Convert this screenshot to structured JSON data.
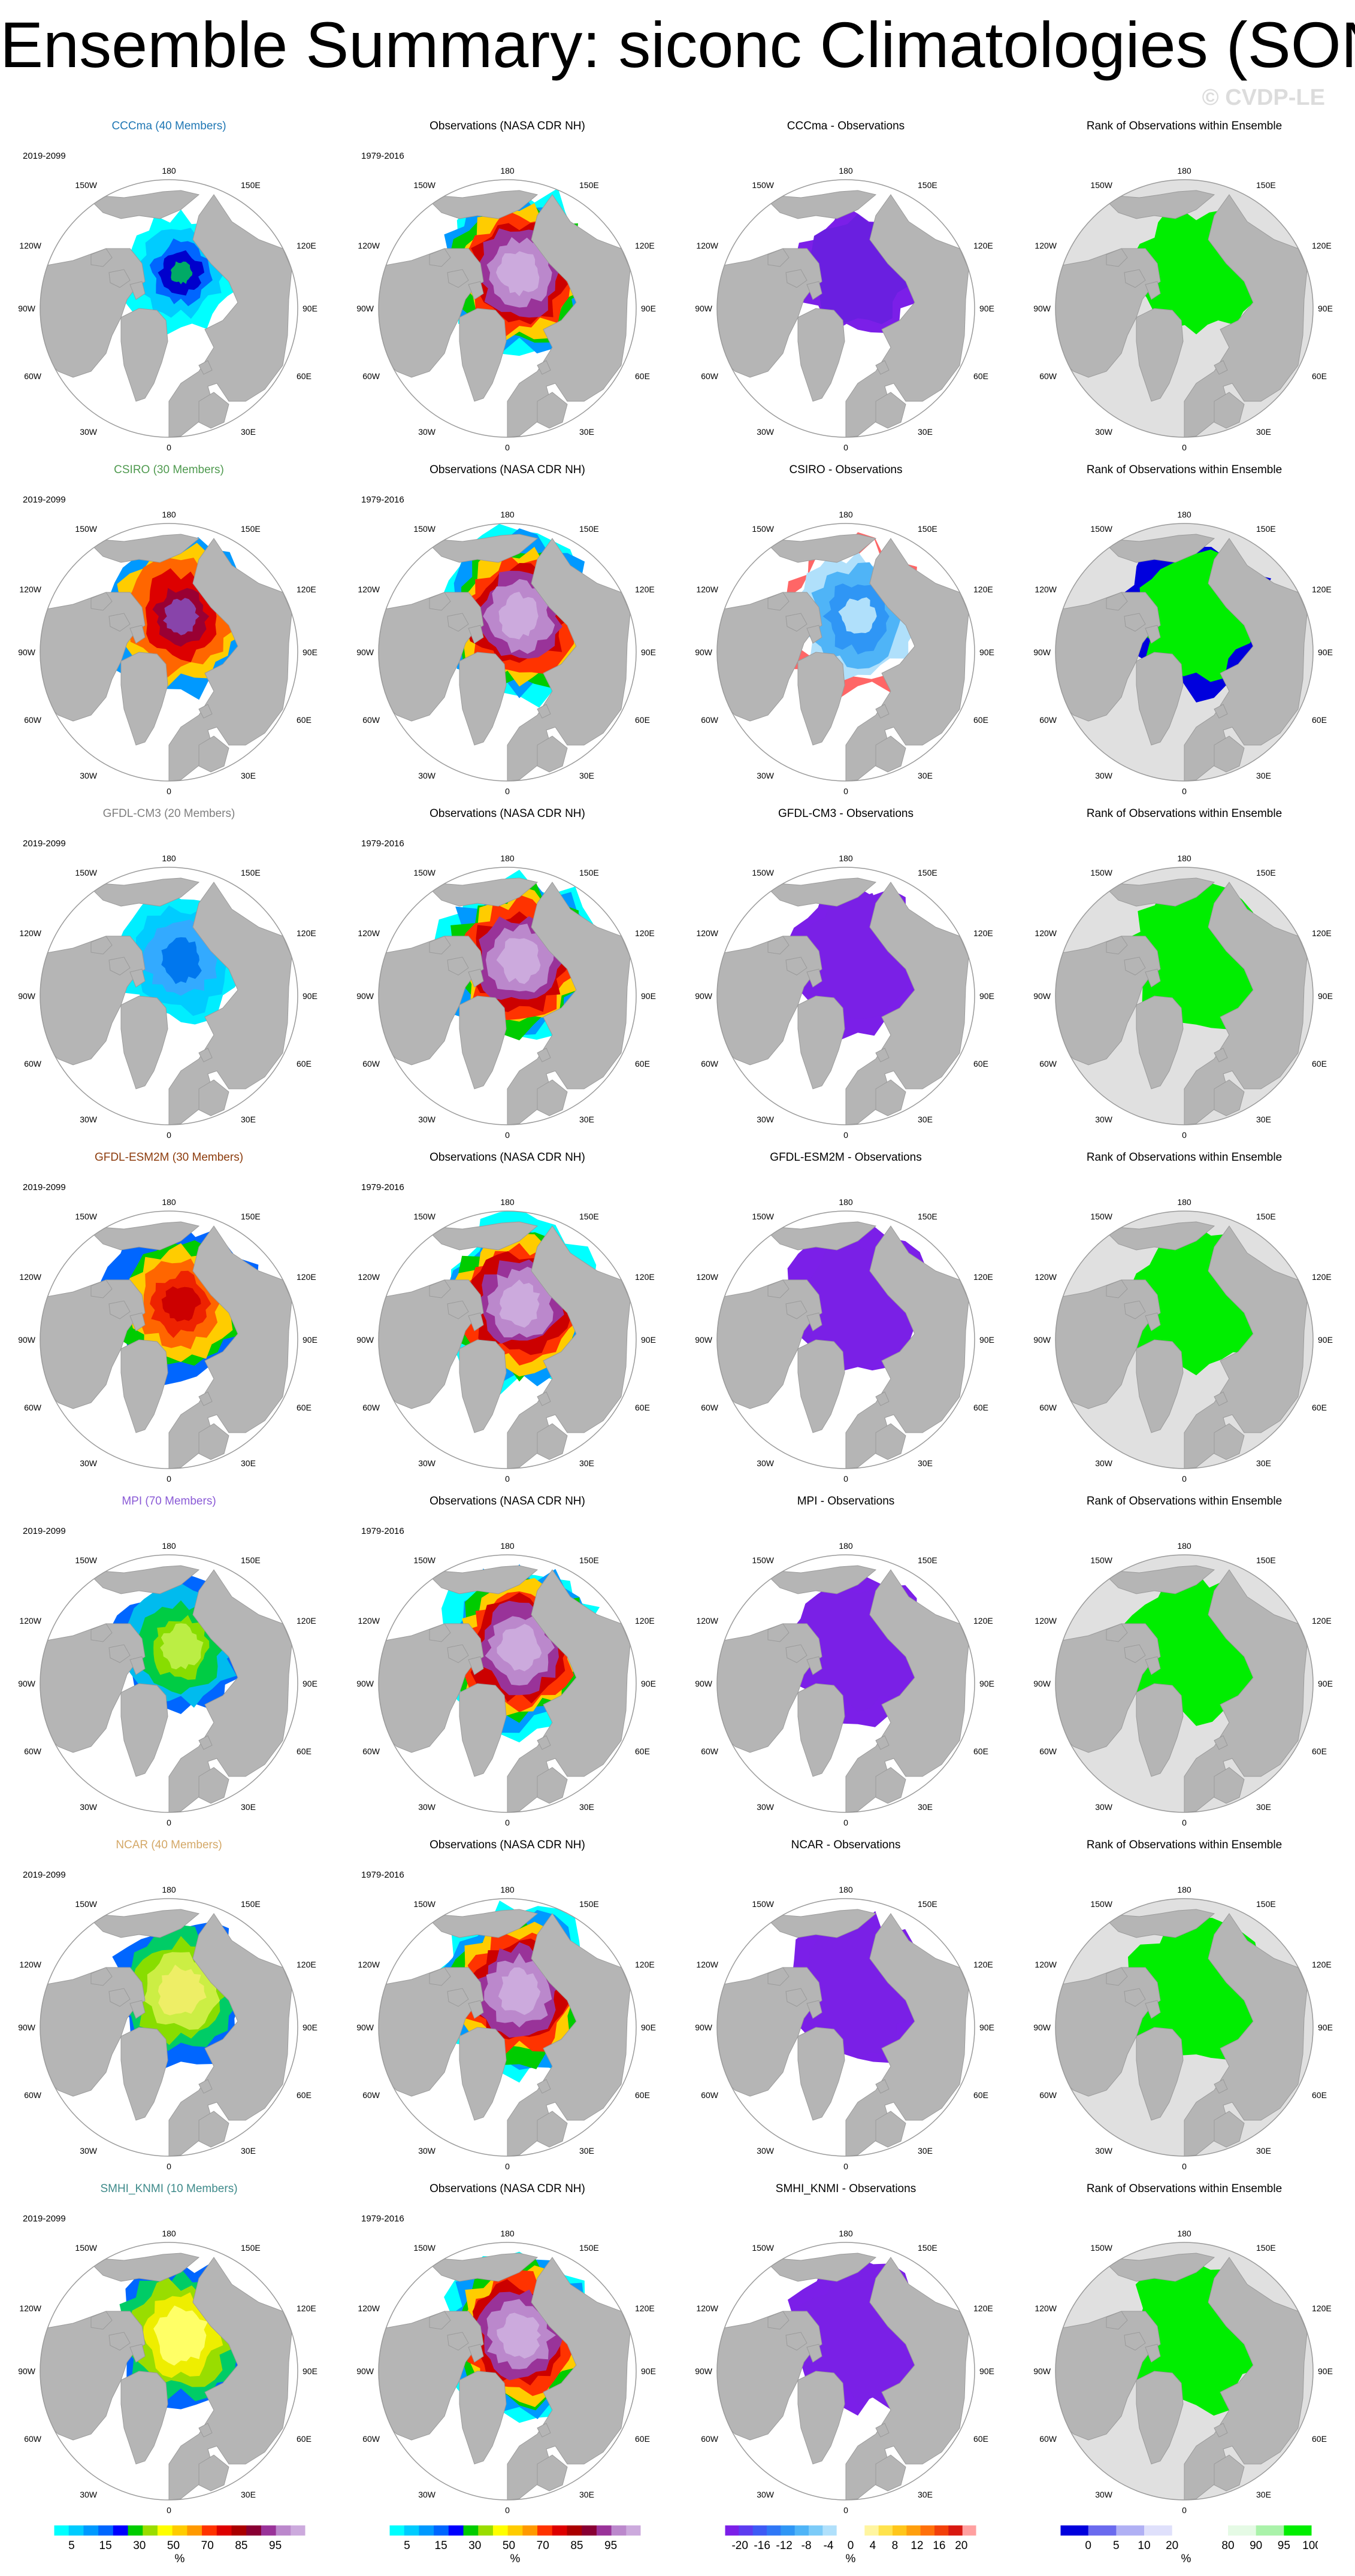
{
  "title": "Ensemble Summary: siconc Climatologies (SON)",
  "watermark": "© CVDP-LE",
  "rows": [
    {
      "model_title": "CCCma (40 Members)",
      "model_color": "#1f77b4",
      "period": "2019-2099",
      "obs_title": "Observations (NASA CDR NH)",
      "obs_period": "1979-2016",
      "diff_title": "CCCma - Observations",
      "rank_title": "Rank of Observations within Ensemble"
    },
    {
      "model_title": "CSIRO (30 Members)",
      "model_color": "#4f9a4f",
      "period": "2019-2099",
      "obs_title": "Observations (NASA CDR NH)",
      "obs_period": "1979-2016",
      "diff_title": "CSIRO - Observations",
      "rank_title": "Rank of Observations within Ensemble"
    },
    {
      "model_title": "GFDL-CM3 (20 Members)",
      "model_color": "#7f7f7f",
      "period": "2019-2099",
      "obs_title": "Observations (NASA CDR NH)",
      "obs_period": "1979-2016",
      "diff_title": "GFDL-CM3 - Observations",
      "rank_title": "Rank of Observations within Ensemble"
    },
    {
      "model_title": "GFDL-ESM2M (30 Members)",
      "model_color": "#8c3b0c",
      "period": "2019-2099",
      "obs_title": "Observations (NASA CDR NH)",
      "obs_period": "1979-2016",
      "diff_title": "GFDL-ESM2M - Observations",
      "rank_title": "Rank of Observations within Ensemble"
    },
    {
      "model_title": "MPI (70 Members)",
      "model_color": "#8a5ad6",
      "period": "2019-2099",
      "obs_title": "Observations (NASA CDR NH)",
      "obs_period": "1979-2016",
      "diff_title": "MPI - Observations",
      "rank_title": "Rank of Observations within Ensemble"
    },
    {
      "model_title": "NCAR (40 Members)",
      "model_color": "#d4a867",
      "period": "2019-2099",
      "obs_title": "Observations (NASA CDR NH)",
      "obs_period": "1979-2016",
      "diff_title": "NCAR - Observations",
      "rank_title": "Rank of Observations within Ensemble"
    },
    {
      "model_title": "SMHI_KNMI (10 Members)",
      "model_color": "#3e8a8a",
      "period": "2019-2099",
      "obs_title": "Observations (NASA CDR NH)",
      "obs_period": "1979-2016",
      "diff_title": "SMHI_KNMI - Observations",
      "rank_title": "Rank of Observations within Ensemble"
    }
  ],
  "lon_labels": {
    "top": "180",
    "bottom": "0",
    "left": "90W",
    "right": "90E",
    "ul1": "150W",
    "ul2": "120W",
    "ur1": "150E",
    "ur2": "120E",
    "ll1": "60W",
    "ll2": "30W",
    "lr1": "60E",
    "lr2": "30E"
  },
  "colorbars": [
    {
      "name": "siconc",
      "unit": "%",
      "ticks": [
        "5",
        "15",
        "30",
        "50",
        "70",
        "85",
        "95"
      ],
      "colors": [
        "#00ffff",
        "#00ccff",
        "#0099ff",
        "#0066ff",
        "#0000ff",
        "#00cc00",
        "#99dd00",
        "#ffff00",
        "#ffcc00",
        "#ff9900",
        "#ff3300",
        "#dd0000",
        "#aa0000",
        "#880033",
        "#993399",
        "#bb88cc",
        "#ccaadd"
      ]
    },
    {
      "name": "siconc-obs",
      "unit": "%",
      "ticks": [
        "5",
        "15",
        "30",
        "50",
        "70",
        "85",
        "95"
      ],
      "colors": [
        "#00ffff",
        "#00ccff",
        "#0099ff",
        "#0066ff",
        "#0000ff",
        "#00cc00",
        "#99dd00",
        "#ffff00",
        "#ffcc00",
        "#ff9900",
        "#ff3300",
        "#dd0000",
        "#aa0000",
        "#880033",
        "#993399",
        "#bb88cc",
        "#ccaadd"
      ]
    },
    {
      "name": "difference",
      "unit": "%",
      "ticks": [
        "-20",
        "-16",
        "-12",
        "-8",
        "-4",
        "0",
        "4",
        "8",
        "12",
        "16",
        "20"
      ],
      "colors": [
        "#7b1fe8",
        "#5c3cf0",
        "#3d5af5",
        "#2f77f6",
        "#2f96f5",
        "#4fb4f7",
        "#7ccbf8",
        "#b0e0fb",
        "#ffffff",
        "#ffffff",
        "#fff5a0",
        "#ffe34d",
        "#ffc61a",
        "#ff9f0d",
        "#ff700a",
        "#f2400a",
        "#d81810",
        "#ffa0a0"
      ]
    },
    {
      "name": "rank",
      "unit": "%",
      "ticks": [
        "0",
        "5",
        "10",
        "20",
        "80",
        "90",
        "95",
        "100"
      ],
      "colors": [
        "#0000dd",
        "#6a6aee",
        "#b0b0f4",
        "#dfe0fb",
        "#ffffff",
        "#ffffff",
        "#e5fae5",
        "#aaf2aa",
        "#00ee00"
      ]
    }
  ]
}
